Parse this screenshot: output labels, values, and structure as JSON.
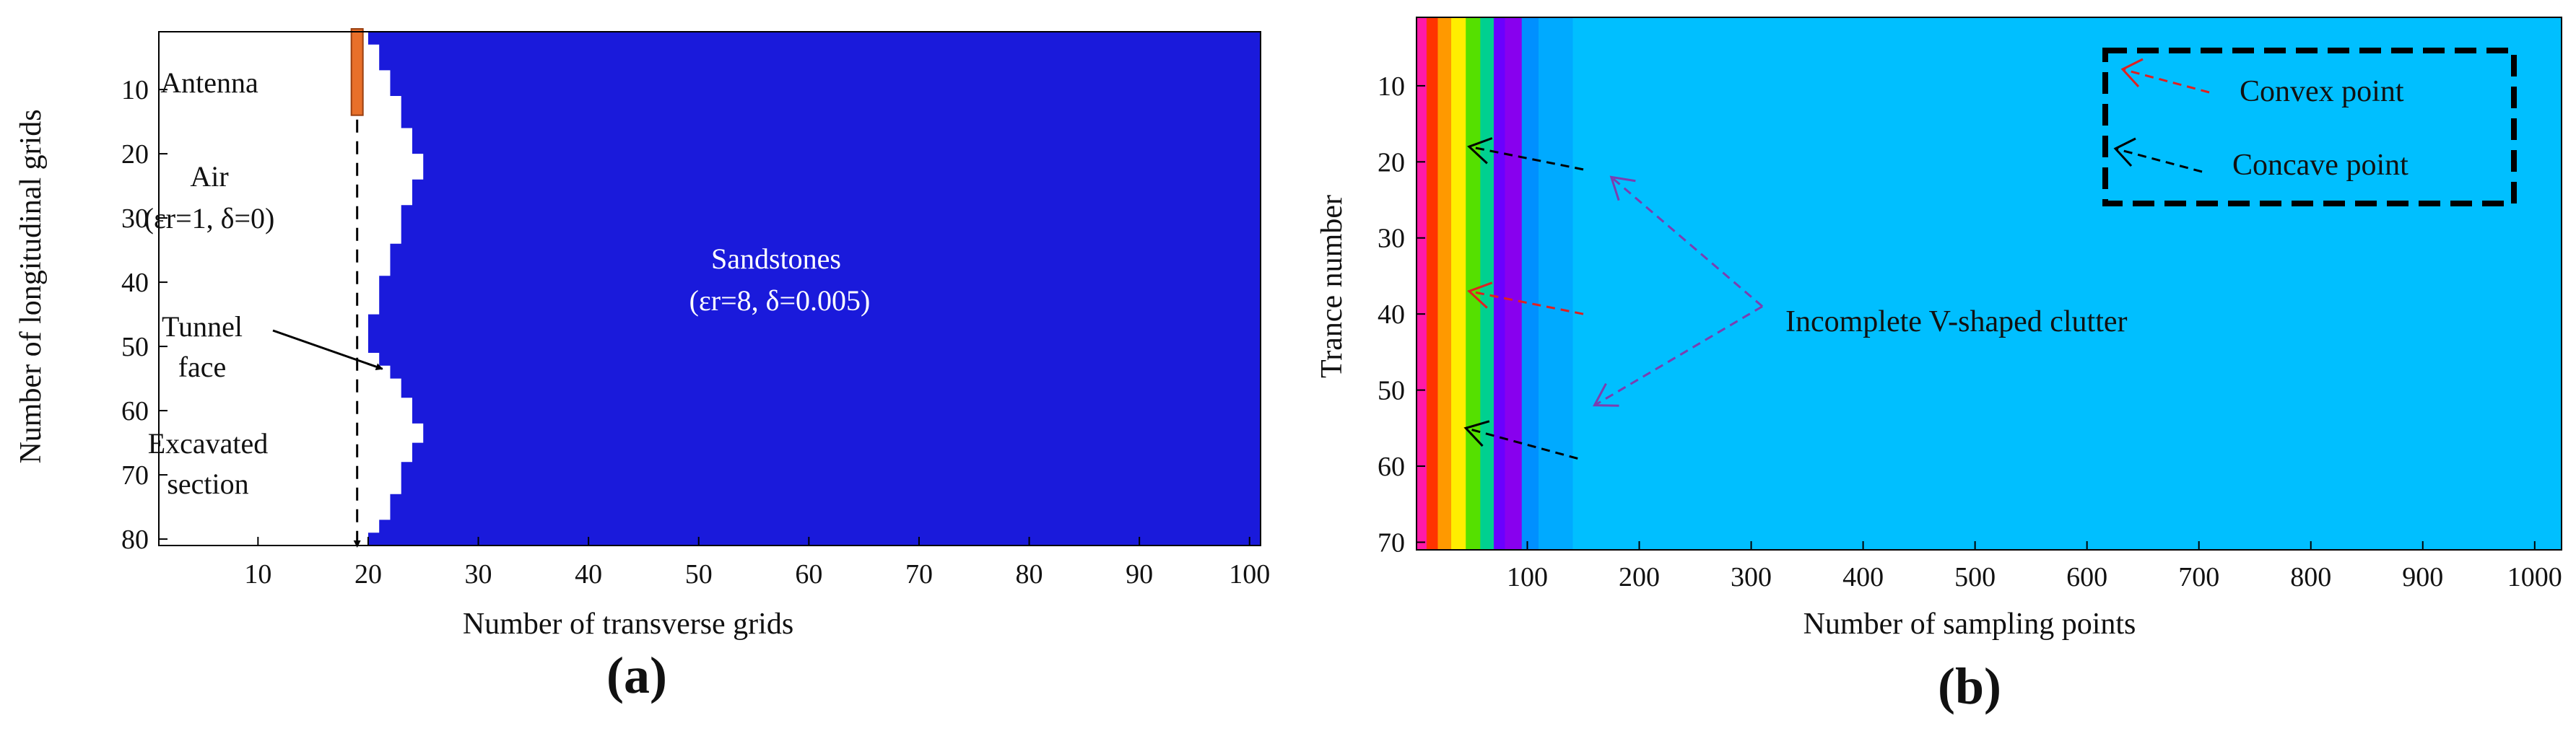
{
  "chart_data": [
    {
      "type": "heatmap",
      "panel_label": "(a)",
      "xlabel": "Number of transverse grids",
      "ylabel": "Number of longitudinal grids",
      "xlim": [
        1,
        101
      ],
      "ylim": [
        1,
        81
      ],
      "y_reversed": true,
      "xticks": [
        10,
        20,
        30,
        40,
        50,
        60,
        70,
        80,
        90,
        100
      ],
      "yticks": [
        10,
        20,
        30,
        40,
        50,
        60,
        70,
        80
      ],
      "boundary_profile": [
        {
          "row": 1,
          "x": 20
        },
        {
          "row": 3,
          "x": 21
        },
        {
          "row": 7,
          "x": 22
        },
        {
          "row": 11,
          "x": 23
        },
        {
          "row": 16,
          "x": 24
        },
        {
          "row": 20,
          "x": 25
        },
        {
          "row": 24,
          "x": 24
        },
        {
          "row": 28,
          "x": 23
        },
        {
          "row": 34,
          "x": 22
        },
        {
          "row": 39,
          "x": 21
        },
        {
          "row": 45,
          "x": 20
        },
        {
          "row": 51,
          "x": 21
        },
        {
          "row": 53,
          "x": 22
        },
        {
          "row": 55,
          "x": 23
        },
        {
          "row": 58,
          "x": 24
        },
        {
          "row": 62,
          "x": 25
        },
        {
          "row": 65,
          "x": 24
        },
        {
          "row": 68,
          "x": 23
        },
        {
          "row": 73,
          "x": 22
        },
        {
          "row": 77,
          "x": 21
        },
        {
          "row": 79,
          "x": 20
        },
        {
          "row": 81,
          "x": 20
        }
      ],
      "antenna_column": 19,
      "antenna_rows": [
        1,
        14
      ],
      "colors": {
        "rock": "#1a1adb",
        "air": "#ffffff",
        "antenna": "#e8702a"
      },
      "annotations": {
        "antenna": "Antenna",
        "air_line1": "Air",
        "air_line2": "(εr=1, δ=0)",
        "tunnel_line1": "Tunnel",
        "tunnel_line2": "face",
        "excavated_line1": "Excavated",
        "excavated_line2": "section",
        "rock_line1": "Sandstones",
        "rock_line2": "(εr=8, δ=0.005)"
      }
    },
    {
      "type": "heatmap",
      "panel_label": "(b)",
      "xlabel": "Number of sampling points",
      "ylabel": "Trance number",
      "xlim": [
        1,
        1024
      ],
      "ylim": [
        1,
        71
      ],
      "y_reversed": true,
      "xticks": [
        100,
        200,
        300,
        400,
        500,
        600,
        700,
        800,
        900,
        1000
      ],
      "yticks": [
        10,
        20,
        30,
        40,
        50,
        60,
        70
      ],
      "background_color": "#00bfff",
      "bands": [
        {
          "x_start": 1,
          "x_end": 10,
          "color": "#ff1aa8"
        },
        {
          "x_start": 10,
          "x_end": 20,
          "color": "#ff3300"
        },
        {
          "x_start": 20,
          "x_end": 32,
          "color": "#ff9900"
        },
        {
          "x_start": 32,
          "x_end": 45,
          "color": "#ffee00"
        },
        {
          "x_start": 45,
          "x_end": 58,
          "color": "#55e000"
        },
        {
          "x_start": 58,
          "x_end": 70,
          "color": "#00d090"
        },
        {
          "x_start": 70,
          "x_end": 80,
          "color": "#6a00ff"
        },
        {
          "x_start": 80,
          "x_end": 95,
          "color": "#8800ee"
        },
        {
          "x_start": 95,
          "x_end": 110,
          "color": "#0090ff"
        },
        {
          "x_start": 110,
          "x_end": 140,
          "color": "#00aaff"
        }
      ],
      "arrows": [
        {
          "kind": "concave",
          "from": [
            150,
            21
          ],
          "to": [
            48,
            18
          ]
        },
        {
          "kind": "convex",
          "from": [
            150,
            40
          ],
          "to": [
            48,
            37
          ]
        },
        {
          "kind": "concave",
          "from": [
            145,
            59
          ],
          "to": [
            45,
            55
          ]
        },
        {
          "kind": "clutter",
          "from": [
            310,
            39
          ],
          "to": [
            175,
            22
          ]
        },
        {
          "kind": "clutter",
          "from": [
            310,
            39
          ],
          "to": [
            160,
            52
          ]
        }
      ],
      "arrow_colors": {
        "convex": "#e02020",
        "concave": "#000000",
        "clutter": "#7a3fb0"
      },
      "annotation": "Incomplete V-shaped clutter",
      "legend": {
        "placement": "top-right",
        "items": [
          {
            "label": "Convex point",
            "color": "#e02020"
          },
          {
            "label": "Concave point",
            "color": "#000000"
          }
        ]
      }
    }
  ]
}
